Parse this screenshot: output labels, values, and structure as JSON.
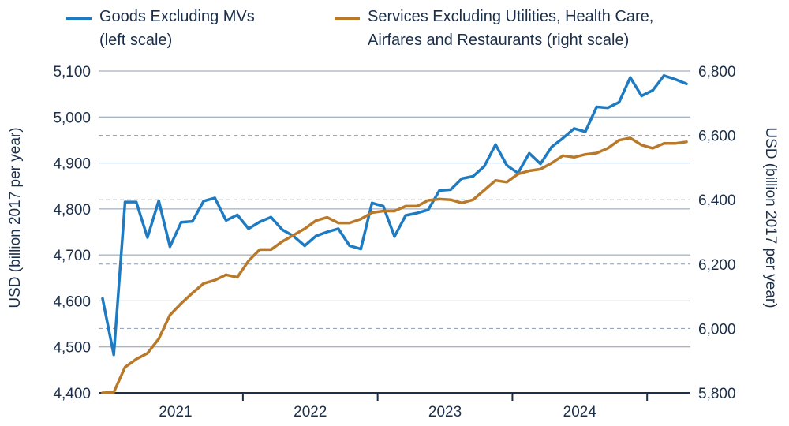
{
  "chart_data": {
    "type": "line",
    "title": "",
    "legend": [
      {
        "name": "Goods Excluding MVs",
        "sub": "(left scale)",
        "color": "#1f7bc1"
      },
      {
        "name": "Services Excluding Utilities, Health Care,",
        "sub": "Airfares and Restaurants (right scale)",
        "color": "#b87a2a"
      }
    ],
    "ylabel_left": "USD (billion 2017 per year)",
    "ylabel_right": "USD (billion 2017 per year)",
    "x_tick_labels": [
      "2021",
      "2022",
      "2023",
      "2024"
    ],
    "y_left": {
      "ylim": [
        4400,
        5100
      ],
      "ticks": [
        4400,
        4500,
        4600,
        4700,
        4800,
        4900,
        5000,
        5100
      ],
      "tick_labels": [
        "4,400",
        "4,500",
        "4,600",
        "4,700",
        "4,800",
        "4,900",
        "5,000",
        "5,100"
      ]
    },
    "y_right": {
      "ylim": [
        5800,
        6800
      ],
      "ticks": [
        5800,
        6000,
        6200,
        6400,
        6600,
        6800
      ],
      "tick_labels": [
        "5,800",
        "6,000",
        "6,200",
        "6,400",
        "6,600",
        "6,800"
      ]
    },
    "grid": "dashed at right-axis ticks",
    "x": [
      "2020-12",
      "2021-01",
      "2021-02",
      "2021-03",
      "2021-04",
      "2021-05",
      "2021-06",
      "2021-07",
      "2021-08",
      "2021-09",
      "2021-10",
      "2021-11",
      "2021-12",
      "2022-01",
      "2022-02",
      "2022-03",
      "2022-04",
      "2022-05",
      "2022-06",
      "2022-07",
      "2022-08",
      "2022-09",
      "2022-10",
      "2022-11",
      "2022-12",
      "2023-01",
      "2023-02",
      "2023-03",
      "2023-04",
      "2023-05",
      "2023-06",
      "2023-07",
      "2023-08",
      "2023-09",
      "2023-10",
      "2023-11",
      "2023-12",
      "2024-01",
      "2024-02",
      "2024-03",
      "2024-04",
      "2024-05",
      "2024-06",
      "2024-07",
      "2024-08",
      "2024-09",
      "2024-10",
      "2024-11",
      "2024-12",
      "2025-01",
      "2025-02",
      "2025-03",
      "2025-04"
    ],
    "series": [
      {
        "name": "Goods Excluding MVs",
        "axis": "left",
        "color": "#1f7bc1",
        "values": [
          4605,
          4483,
          4815,
          4815,
          4738,
          4818,
          4718,
          4771,
          4773,
          4817,
          4824,
          4775,
          4787,
          4757,
          4772,
          4782,
          4755,
          4741,
          4720,
          4741,
          4750,
          4757,
          4720,
          4713,
          4813,
          4806,
          4740,
          4786,
          4791,
          4798,
          4840,
          4842,
          4866,
          4871,
          4893,
          4940,
          4895,
          4878,
          4921,
          4898,
          4935,
          4954,
          4975,
          4968,
          5022,
          5020,
          5032,
          5086,
          5046,
          5058,
          5090,
          5082,
          5072
        ]
      },
      {
        "name": "Services Excluding Utilities, Health Care, Airfares and Restaurants",
        "axis": "right",
        "color": "#b87a2a",
        "values": [
          5800,
          5802,
          5880,
          5905,
          5923,
          5968,
          6042,
          6078,
          6110,
          6140,
          6150,
          6167,
          6159,
          6210,
          6245,
          6245,
          6270,
          6290,
          6310,
          6335,
          6345,
          6328,
          6328,
          6340,
          6360,
          6365,
          6365,
          6380,
          6380,
          6398,
          6402,
          6400,
          6390,
          6400,
          6430,
          6460,
          6455,
          6480,
          6490,
          6495,
          6514,
          6537,
          6532,
          6541,
          6545,
          6560,
          6585,
          6592,
          6570,
          6560,
          6575,
          6575,
          6580
        ]
      }
    ]
  }
}
